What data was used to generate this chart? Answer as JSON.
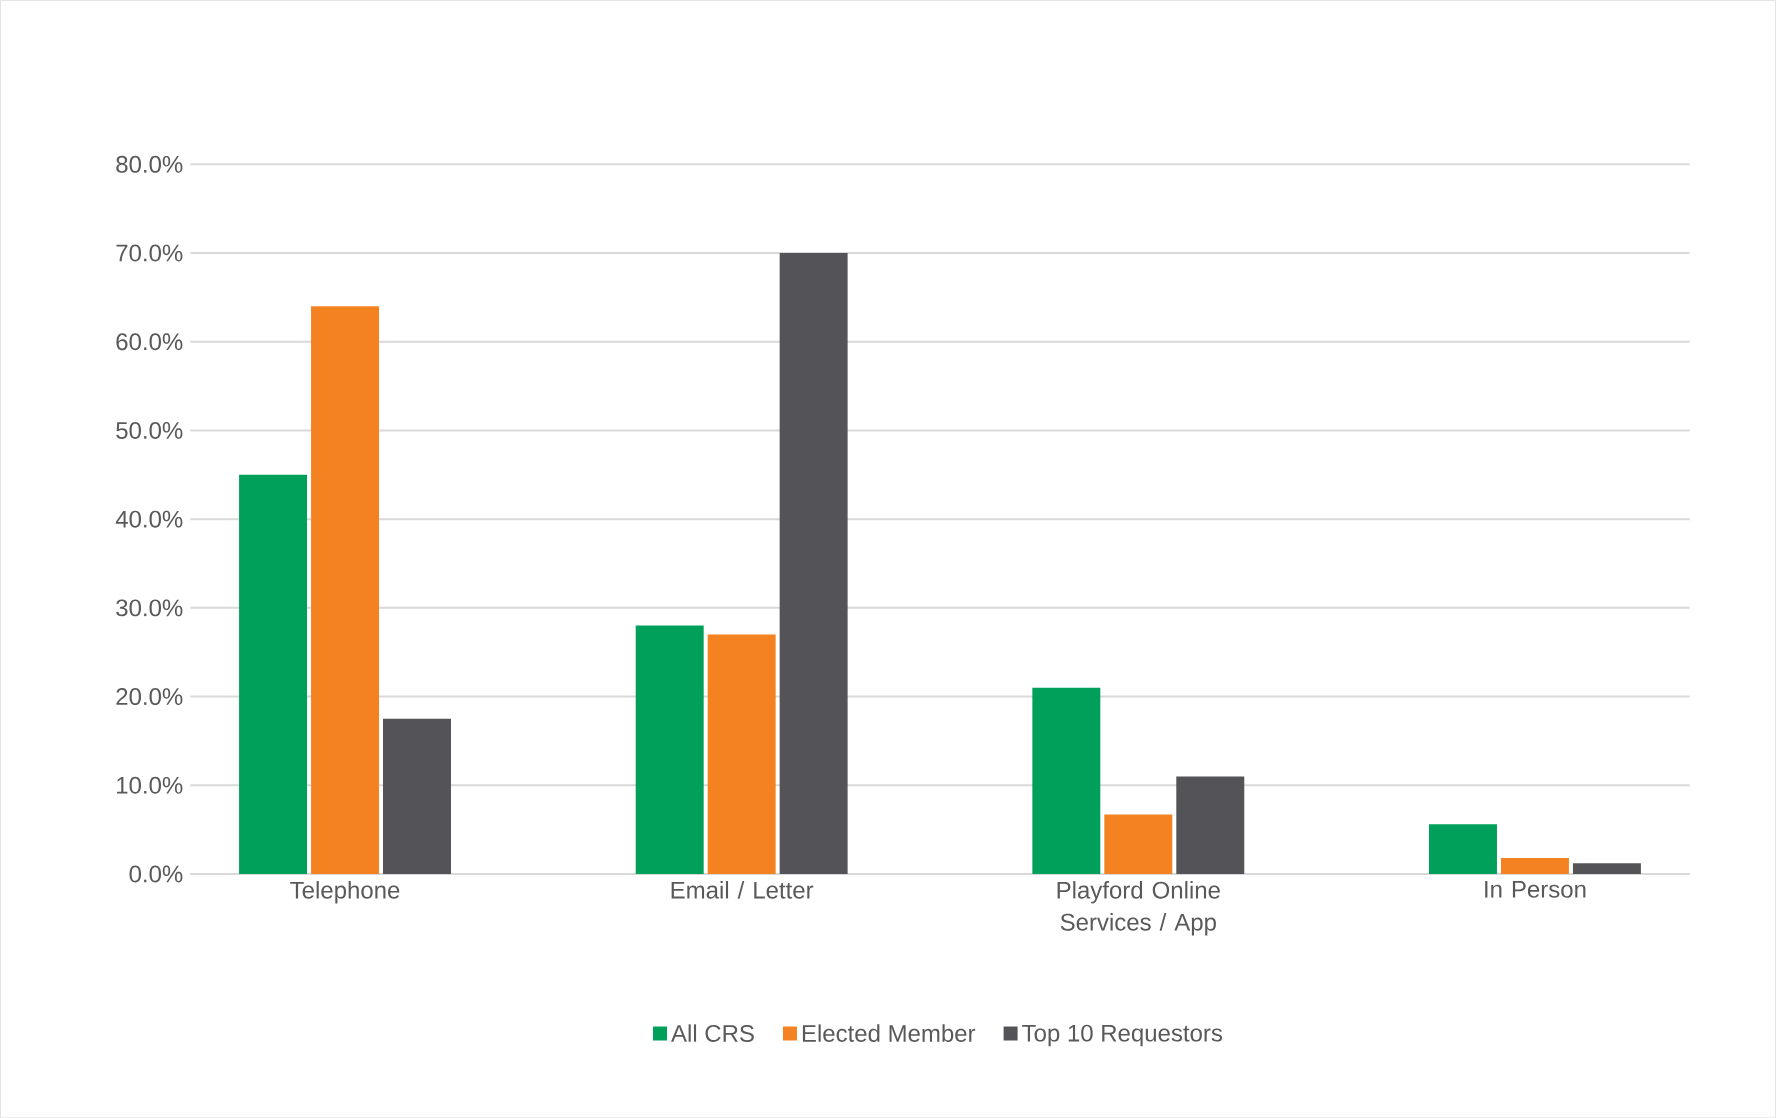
{
  "chart_data": {
    "type": "bar",
    "categories": [
      "Telephone",
      "Email / Letter",
      "Playford Online Services / App",
      "In Person"
    ],
    "series": [
      {
        "name": "All CRS",
        "color": "#00a05a",
        "values": [
          45,
          28,
          21,
          5.6
        ]
      },
      {
        "name": "Elected Member",
        "color": "#f58220",
        "values": [
          64,
          27,
          6.7,
          1.8
        ]
      },
      {
        "name": "Top 10 Requestors",
        "color": "#545357",
        "values": [
          17.5,
          70,
          11,
          1.2
        ]
      }
    ],
    "ylim": [
      0,
      80
    ],
    "yticks": [
      {
        "value": 0,
        "label": "0.0%"
      },
      {
        "value": 10,
        "label": "10.0%"
      },
      {
        "value": 20,
        "label": "20.0%"
      },
      {
        "value": 30,
        "label": "30.0%"
      },
      {
        "value": 40,
        "label": "40.0%"
      },
      {
        "value": 50,
        "label": "50.0%"
      },
      {
        "value": 60,
        "label": "60.0%"
      },
      {
        "value": 70,
        "label": "70.0%"
      },
      {
        "value": 80,
        "label": "80.0%"
      }
    ],
    "grid": "y",
    "legend": "bottom"
  }
}
